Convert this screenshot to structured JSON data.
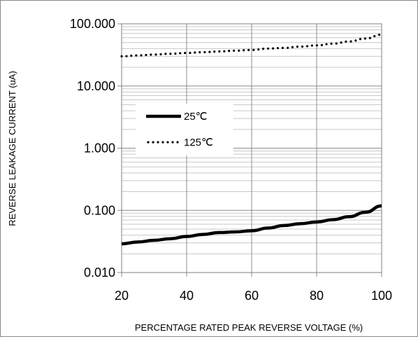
{
  "chart_data": {
    "type": "line",
    "title": "",
    "xlabel": "PERCENTAGE RATED PEAK REVERSE VOLTAGE (%)",
    "ylabel": "REVERSE LEAKAGE CURRENT (uA)",
    "x_scale": "linear",
    "y_scale": "log",
    "xlim": [
      20,
      100
    ],
    "ylim": [
      0.01,
      100
    ],
    "x_ticks": [
      "20",
      "40",
      "60",
      "80",
      "100"
    ],
    "y_ticks": [
      "0.010",
      "0.100",
      "1.000",
      "10.000",
      "100.000"
    ],
    "grid": true,
    "legend_position": "left-middle",
    "series": [
      {
        "name": "25℃",
        "style": "solid",
        "color": "#000000",
        "x": [
          20,
          25,
          30,
          35,
          40,
          45,
          50,
          55,
          60,
          65,
          70,
          75,
          80,
          85,
          90,
          95,
          100
        ],
        "y": [
          0.029,
          0.031,
          0.033,
          0.035,
          0.038,
          0.041,
          0.044,
          0.045,
          0.047,
          0.052,
          0.057,
          0.061,
          0.065,
          0.071,
          0.079,
          0.093,
          0.118
        ]
      },
      {
        "name": "125℃",
        "style": "dotted",
        "color": "#000000",
        "x": [
          20,
          25,
          30,
          35,
          40,
          45,
          50,
          55,
          60,
          65,
          70,
          75,
          80,
          85,
          90,
          95,
          100
        ],
        "y": [
          30,
          31,
          32,
          33,
          34,
          35,
          36,
          37,
          38,
          40,
          41,
          43,
          45,
          48,
          52,
          58,
          67
        ]
      }
    ]
  }
}
